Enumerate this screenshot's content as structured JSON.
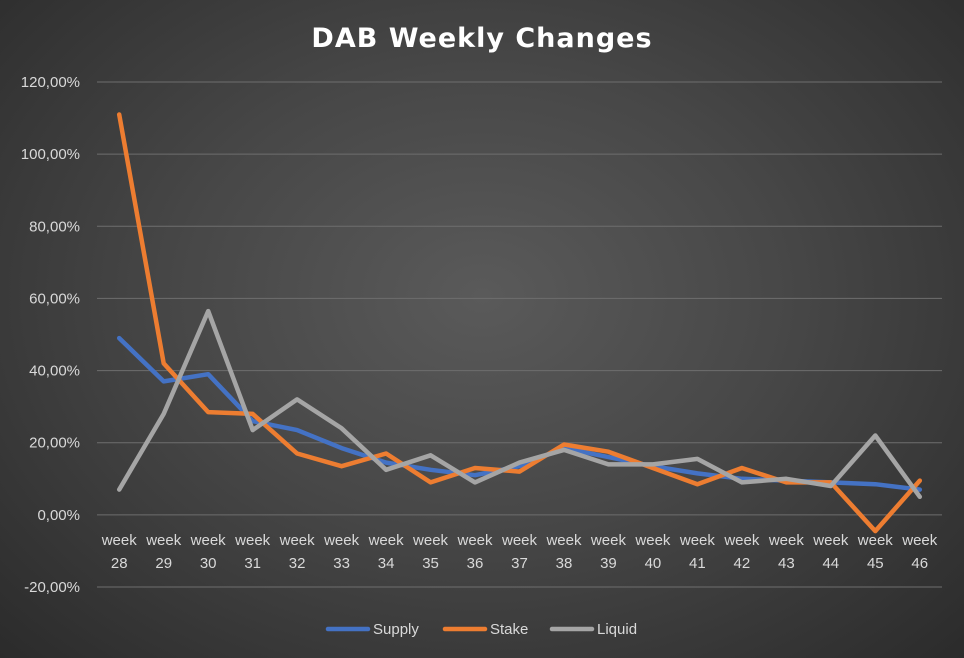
{
  "chart_data": {
    "type": "line",
    "title": "DAB Weekly Changes",
    "xlabel": "",
    "ylabel": "",
    "ylim": [
      -20,
      120
    ],
    "yticks": [
      -20,
      0,
      20,
      40,
      60,
      80,
      100,
      120
    ],
    "ytick_labels": [
      "-20,00%",
      "0,00%",
      "20,00%",
      "40,00%",
      "60,00%",
      "80,00%",
      "100,00%",
      "120,00%"
    ],
    "categories": [
      "week 28",
      "week 29",
      "week 30",
      "week 31",
      "week 32",
      "week 33",
      "week 34",
      "week 35",
      "week 36",
      "week 37",
      "week 38",
      "week 39",
      "week 40",
      "week 41",
      "week 42",
      "week 43",
      "week 44",
      "week 45",
      "week 46"
    ],
    "grid": true,
    "legend_position": "bottom",
    "series": [
      {
        "name": "Supply",
        "color": "#4472c4",
        "values": [
          49,
          37,
          39,
          26,
          23.5,
          18.5,
          14.5,
          12.5,
          11,
          13.5,
          18.5,
          16,
          13.5,
          11.5,
          10,
          9.5,
          9,
          8.5,
          7
        ]
      },
      {
        "name": "Stake",
        "color": "#ed7d31",
        "values": [
          111,
          42,
          28.5,
          28,
          17,
          13.5,
          17,
          9,
          13,
          12,
          19.5,
          17.5,
          13,
          8.5,
          13,
          9,
          9,
          -4.5,
          9.5
        ]
      },
      {
        "name": "Liquid",
        "color": "#a5a5a5",
        "values": [
          7,
          28,
          56.5,
          23.5,
          32,
          24,
          12.5,
          16.5,
          9,
          14.5,
          18,
          14,
          14,
          15.5,
          9,
          10,
          8,
          22,
          5
        ]
      }
    ]
  }
}
